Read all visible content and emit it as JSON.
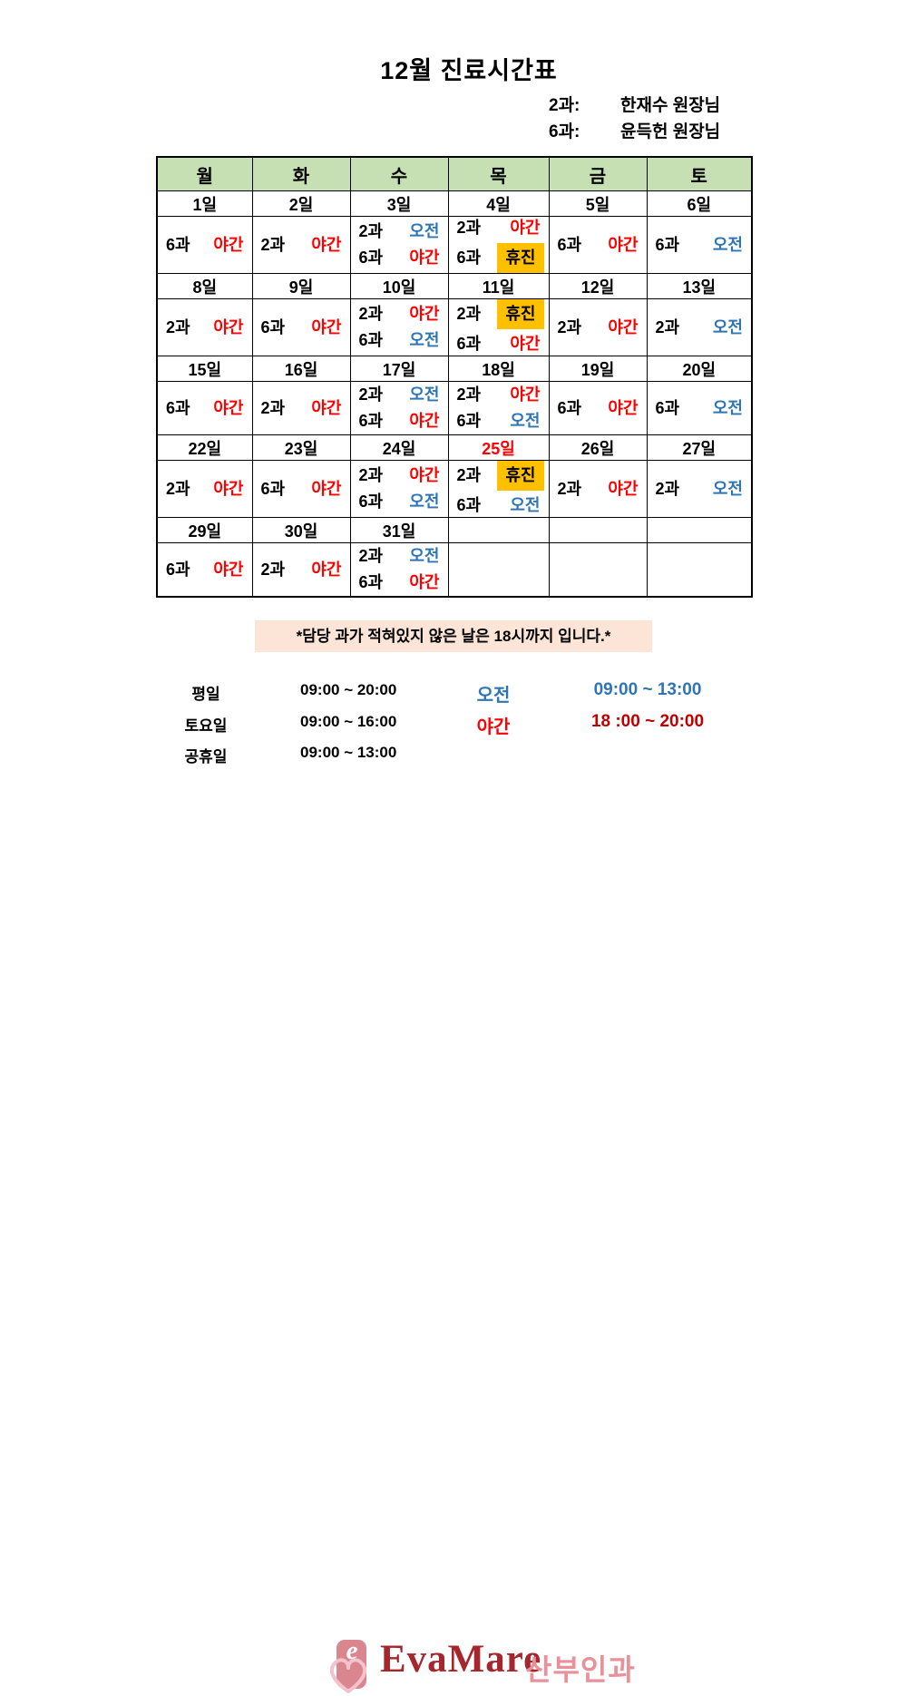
{
  "page": {
    "title": "12월 진료시간표"
  },
  "legend": {
    "rows": [
      {
        "dept": "2과:",
        "doctor": "한재수 원장님"
      },
      {
        "dept": "6과:",
        "doctor": "윤득헌 원장님"
      }
    ]
  },
  "calendar": {
    "weekdays": [
      "월",
      "화",
      "수",
      "목",
      "금",
      "토"
    ],
    "weeks": [
      {
        "dates": [
          {
            "label": "1일",
            "highlight": false
          },
          {
            "label": "2일",
            "highlight": false
          },
          {
            "label": "3일",
            "highlight": false
          },
          {
            "label": "4일",
            "highlight": false
          },
          {
            "label": "5일",
            "highlight": false
          },
          {
            "label": "6일",
            "highlight": false
          }
        ],
        "cells": [
          {
            "entries": [
              {
                "dept": "6과",
                "shift": "야간",
                "type": "night"
              }
            ]
          },
          {
            "entries": [
              {
                "dept": "2과",
                "shift": "야간",
                "type": "night"
              }
            ]
          },
          {
            "entries": [
              {
                "dept": "2과",
                "shift": "오전",
                "type": "morning"
              },
              {
                "dept": "6과",
                "shift": "야간",
                "type": "night"
              }
            ]
          },
          {
            "entries": [
              {
                "dept": "2과",
                "shift": "야간",
                "type": "night"
              },
              {
                "dept": "6과",
                "shift": "휴진",
                "type": "closed"
              }
            ]
          },
          {
            "entries": [
              {
                "dept": "6과",
                "shift": "야간",
                "type": "night"
              }
            ]
          },
          {
            "entries": [
              {
                "dept": "6과",
                "shift": "오전",
                "type": "morning"
              }
            ]
          }
        ]
      },
      {
        "dates": [
          {
            "label": "8일",
            "highlight": false
          },
          {
            "label": "9일",
            "highlight": false
          },
          {
            "label": "10일",
            "highlight": false
          },
          {
            "label": "11일",
            "highlight": false
          },
          {
            "label": "12일",
            "highlight": false
          },
          {
            "label": "13일",
            "highlight": false
          }
        ],
        "cells": [
          {
            "entries": [
              {
                "dept": "2과",
                "shift": "야간",
                "type": "night"
              }
            ]
          },
          {
            "entries": [
              {
                "dept": "6과",
                "shift": "야간",
                "type": "night"
              }
            ]
          },
          {
            "entries": [
              {
                "dept": "2과",
                "shift": "야간",
                "type": "night"
              },
              {
                "dept": "6과",
                "shift": "오전",
                "type": "morning"
              }
            ]
          },
          {
            "entries": [
              {
                "dept": "2과",
                "shift": "휴진",
                "type": "closed"
              },
              {
                "dept": "6과",
                "shift": "야간",
                "type": "night"
              }
            ]
          },
          {
            "entries": [
              {
                "dept": "2과",
                "shift": "야간",
                "type": "night"
              }
            ]
          },
          {
            "entries": [
              {
                "dept": "2과",
                "shift": "오전",
                "type": "morning"
              }
            ]
          }
        ]
      },
      {
        "dates": [
          {
            "label": "15일",
            "highlight": false
          },
          {
            "label": "16일",
            "highlight": false
          },
          {
            "label": "17일",
            "highlight": false
          },
          {
            "label": "18일",
            "highlight": false
          },
          {
            "label": "19일",
            "highlight": false
          },
          {
            "label": "20일",
            "highlight": false
          }
        ],
        "cells": [
          {
            "entries": [
              {
                "dept": "6과",
                "shift": "야간",
                "type": "night"
              }
            ]
          },
          {
            "entries": [
              {
                "dept": "2과",
                "shift": "야간",
                "type": "night"
              }
            ]
          },
          {
            "entries": [
              {
                "dept": "2과",
                "shift": "오전",
                "type": "morning"
              },
              {
                "dept": "6과",
                "shift": "야간",
                "type": "night"
              }
            ]
          },
          {
            "entries": [
              {
                "dept": "2과",
                "shift": "야간",
                "type": "night"
              },
              {
                "dept": "6과",
                "shift": "오전",
                "type": "morning"
              }
            ]
          },
          {
            "entries": [
              {
                "dept": "6과",
                "shift": "야간",
                "type": "night"
              }
            ]
          },
          {
            "entries": [
              {
                "dept": "6과",
                "shift": "오전",
                "type": "morning"
              }
            ]
          }
        ]
      },
      {
        "dates": [
          {
            "label": "22일",
            "highlight": false
          },
          {
            "label": "23일",
            "highlight": false
          },
          {
            "label": "24일",
            "highlight": false
          },
          {
            "label": "25일",
            "highlight": true
          },
          {
            "label": "26일",
            "highlight": false
          },
          {
            "label": "27일",
            "highlight": false
          }
        ],
        "cells": [
          {
            "entries": [
              {
                "dept": "2과",
                "shift": "야간",
                "type": "night"
              }
            ]
          },
          {
            "entries": [
              {
                "dept": "6과",
                "shift": "야간",
                "type": "night"
              }
            ]
          },
          {
            "entries": [
              {
                "dept": "2과",
                "shift": "야간",
                "type": "night"
              },
              {
                "dept": "6과",
                "shift": "오전",
                "type": "morning"
              }
            ]
          },
          {
            "entries": [
              {
                "dept": "2과",
                "shift": "휴진",
                "type": "closed"
              },
              {
                "dept": "6과",
                "shift": "오전",
                "type": "morning"
              }
            ]
          },
          {
            "entries": [
              {
                "dept": "2과",
                "shift": "야간",
                "type": "night"
              }
            ]
          },
          {
            "entries": [
              {
                "dept": "2과",
                "shift": "오전",
                "type": "morning"
              }
            ]
          }
        ]
      },
      {
        "dates": [
          {
            "label": "29일",
            "highlight": false
          },
          {
            "label": "30일",
            "highlight": false
          },
          {
            "label": "31일",
            "highlight": false
          },
          {
            "label": "",
            "highlight": false
          },
          {
            "label": "",
            "highlight": false
          },
          {
            "label": "",
            "highlight": false
          }
        ],
        "cells": [
          {
            "entries": [
              {
                "dept": "6과",
                "shift": "야간",
                "type": "night"
              }
            ]
          },
          {
            "entries": [
              {
                "dept": "2과",
                "shift": "야간",
                "type": "night"
              }
            ]
          },
          {
            "entries": [
              {
                "dept": "2과",
                "shift": "오전",
                "type": "morning"
              },
              {
                "dept": "6과",
                "shift": "야간",
                "type": "night"
              }
            ]
          },
          {
            "entries": []
          },
          {
            "entries": []
          },
          {
            "entries": []
          }
        ]
      }
    ]
  },
  "note": {
    "text": "*담당 과가 적혀있지 않은 날은 18시까지 입니다.*"
  },
  "hours": {
    "general": [
      {
        "label": "평일",
        "time": "09:00 ~ 20:00"
      },
      {
        "label": "토요일",
        "time": "09:00 ~ 16:00"
      },
      {
        "label": "공휴일",
        "time": "09:00 ~ 13:00"
      }
    ],
    "shifts": [
      {
        "label": "오전",
        "time": "09:00 ~ 13:00",
        "type": "morning"
      },
      {
        "label": "야간",
        "time": "18 :00 ~ 20:00",
        "type": "night"
      }
    ]
  },
  "logo": {
    "letter": "e",
    "name": "EvaMare",
    "suffix": "산부인과"
  },
  "colors": {
    "header_green": "#C6E0B4",
    "morning_blue": "#2E75B6",
    "night_red": "#FF0000",
    "closed_bg": "#FFC000",
    "note_bg": "#FCE4D6",
    "footer_night_red": "#C00000",
    "logo_dark_red": "#A6262E",
    "logo_pink": "#E8919A"
  }
}
